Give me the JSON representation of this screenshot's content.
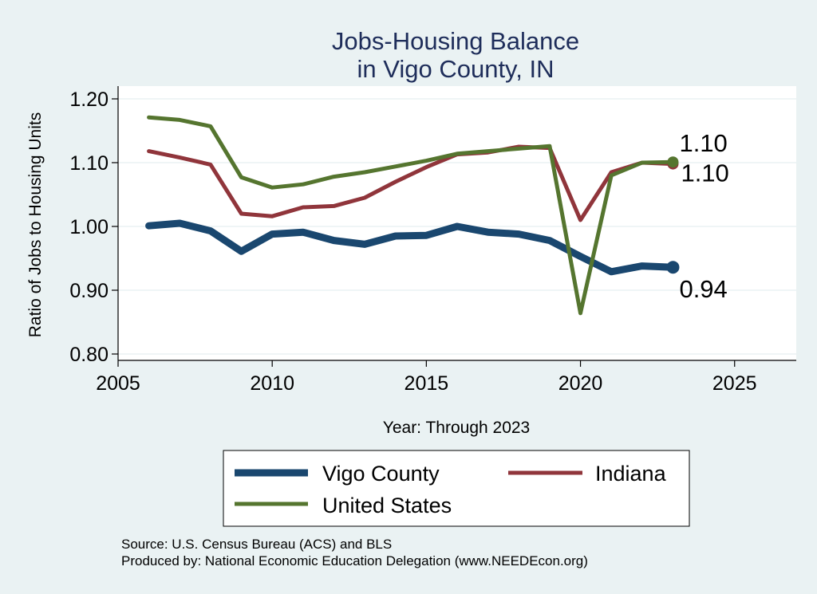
{
  "chart_data": {
    "type": "line",
    "title": "Jobs-Housing Balance",
    "subtitle": "in Vigo County, IN",
    "xlabel": "Year: Through 2023",
    "ylabel": "Ratio of Jobs to Housing Units",
    "xlim": [
      2005,
      2027
    ],
    "ylim": [
      0.79,
      1.22
    ],
    "xticks": [
      2005,
      2010,
      2015,
      2020,
      2025
    ],
    "yticks": [
      0.8,
      0.9,
      1.0,
      1.1,
      1.2
    ],
    "ytick_labels": [
      "0.80",
      "0.90",
      "1.00",
      "1.10",
      "1.20"
    ],
    "grid": true,
    "legend_position": "bottom",
    "x": [
      2006,
      2007,
      2008,
      2009,
      2010,
      2011,
      2012,
      2013,
      2014,
      2015,
      2016,
      2017,
      2018,
      2019,
      2020,
      2021,
      2022,
      2023
    ],
    "series": [
      {
        "name": "Vigo County",
        "color": "#1a476f",
        "end_label": "0.94",
        "values": [
          1.001,
          1.005,
          0.993,
          0.961,
          0.988,
          0.991,
          0.978,
          0.972,
          0.985,
          0.986,
          1.0,
          0.991,
          0.988,
          0.978,
          0.953,
          0.929,
          0.938,
          0.936
        ]
      },
      {
        "name": "Indiana",
        "color": "#90353b",
        "end_label": "1.10",
        "values": [
          1.118,
          1.108,
          1.097,
          1.02,
          1.016,
          1.03,
          1.032,
          1.045,
          1.07,
          1.093,
          1.113,
          1.116,
          1.125,
          1.123,
          1.01,
          1.085,
          1.1,
          1.098
        ]
      },
      {
        "name": "United States",
        "color": "#55752f",
        "end_label": "1.10",
        "values": [
          1.171,
          1.167,
          1.157,
          1.077,
          1.061,
          1.066,
          1.078,
          1.085,
          1.094,
          1.103,
          1.114,
          1.118,
          1.122,
          1.126,
          0.864,
          1.08,
          1.1,
          1.101
        ]
      }
    ]
  },
  "source_line": "Source: U.S. Census Bureau (ACS) and BLS",
  "produced_line": "Produced by: National Economic Education Delegation (www.NEEDEcon.org)"
}
